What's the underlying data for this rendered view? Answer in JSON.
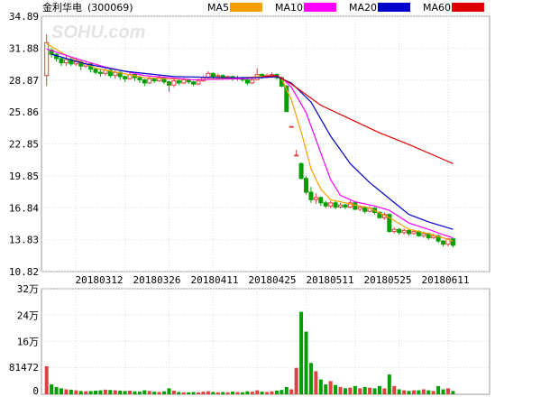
{
  "chart_data": {
    "type": "candlestick",
    "title": "金利华电",
    "code": "(300069)",
    "watermark": "SOHU.com",
    "legend": [
      {
        "name": "MA5",
        "color": "#f5a000"
      },
      {
        "name": "MA10",
        "color": "#ff00ff"
      },
      {
        "name": "MA20",
        "color": "#0000cc"
      },
      {
        "name": "MA60",
        "color": "#dd0000"
      }
    ],
    "up_color": "#e04040",
    "down_color": "#00a000",
    "price_axis": {
      "min": 10.82,
      "max": 34.89,
      "ticks": [
        "34.89",
        "31.88",
        "28.87",
        "25.86",
        "22.85",
        "19.85",
        "16.84",
        "13.83",
        "10.82"
      ]
    },
    "date_labels": [
      "20180312",
      "20180326",
      "20180411",
      "20180425",
      "20180511",
      "20180525",
      "20180611"
    ],
    "volume_axis": {
      "max": 320000,
      "ticks": [
        {
          "label": "32万",
          "value": 320000
        },
        {
          "label": "24万",
          "value": 240000
        },
        {
          "label": "16万",
          "value": 160000
        },
        {
          "label": "81472",
          "value": 81472
        },
        {
          "label": "0",
          "value": 0
        }
      ]
    },
    "candles": [
      [
        29.3,
        32.4,
        33.2,
        28.3,
        85000
      ],
      [
        31.7,
        31.3,
        31.9,
        31.0,
        30000
      ],
      [
        31.3,
        30.9,
        31.4,
        30.6,
        22000
      ],
      [
        30.9,
        30.5,
        31.0,
        30.2,
        18000
      ],
      [
        30.5,
        30.8,
        31.2,
        30.2,
        15000
      ],
      [
        30.8,
        30.4,
        31.0,
        30.2,
        14000
      ],
      [
        30.4,
        30.6,
        31.0,
        30.2,
        12000
      ],
      [
        30.6,
        30.2,
        30.7,
        29.8,
        10000
      ],
      [
        30.2,
        30.4,
        30.6,
        30.0,
        9000
      ],
      [
        30.4,
        29.9,
        30.5,
        29.6,
        10000
      ],
      [
        29.9,
        29.6,
        30.0,
        29.4,
        11000
      ],
      [
        29.6,
        29.5,
        29.9,
        29.2,
        12000
      ],
      [
        29.5,
        29.8,
        30.0,
        29.3,
        14000
      ],
      [
        29.8,
        29.3,
        29.9,
        29.1,
        13000
      ],
      [
        29.3,
        29.6,
        29.8,
        29.0,
        12000
      ],
      [
        29.6,
        29.2,
        29.7,
        28.9,
        11000
      ],
      [
        29.2,
        29.0,
        29.3,
        28.7,
        10000
      ],
      [
        29.0,
        29.4,
        29.6,
        28.9,
        11000
      ],
      [
        29.4,
        29.1,
        29.5,
        28.8,
        9000
      ],
      [
        29.1,
        28.9,
        29.3,
        28.6,
        8000
      ],
      [
        28.9,
        28.6,
        29.0,
        28.3,
        12000
      ],
      [
        28.6,
        29.0,
        29.2,
        28.5,
        10000
      ],
      [
        29.0,
        28.8,
        29.1,
        28.6,
        8000
      ],
      [
        28.8,
        29.1,
        29.3,
        28.7,
        7000
      ],
      [
        29.1,
        28.7,
        29.2,
        28.5,
        9000
      ],
      [
        28.7,
        28.4,
        28.8,
        27.8,
        18000
      ],
      [
        28.4,
        28.8,
        29.0,
        28.2,
        11000
      ],
      [
        28.8,
        28.6,
        29.0,
        28.4,
        7000
      ],
      [
        28.6,
        28.9,
        29.1,
        28.5,
        6000
      ],
      [
        28.9,
        28.7,
        29.0,
        28.5,
        6000
      ],
      [
        28.7,
        28.5,
        28.8,
        28.3,
        7000
      ],
      [
        28.5,
        28.8,
        29.0,
        28.4,
        6000
      ],
      [
        28.8,
        29.1,
        29.3,
        28.7,
        8000
      ],
      [
        29.1,
        29.5,
        29.7,
        29.0,
        9000
      ],
      [
        29.5,
        29.2,
        29.6,
        29.0,
        7000
      ],
      [
        29.2,
        29.3,
        29.5,
        29.1,
        6000
      ],
      [
        29.3,
        29.1,
        29.4,
        28.9,
        7000
      ],
      [
        29.1,
        29.2,
        29.3,
        28.9,
        6000
      ],
      [
        29.2,
        29.0,
        29.3,
        28.8,
        8000
      ],
      [
        29.0,
        29.1,
        29.3,
        28.8,
        7000
      ],
      [
        29.1,
        28.9,
        29.2,
        28.7,
        6000
      ],
      [
        28.9,
        28.6,
        29.0,
        28.4,
        9000
      ],
      [
        28.6,
        28.9,
        29.1,
        28.5,
        8000
      ],
      [
        28.9,
        29.4,
        30.0,
        28.9,
        12000
      ],
      [
        29.4,
        29.2,
        29.5,
        29.0,
        8000
      ],
      [
        29.2,
        29.3,
        29.5,
        29.1,
        7000
      ],
      [
        29.3,
        29.4,
        29.6,
        29.1,
        9000
      ],
      [
        29.4,
        29.1,
        29.5,
        28.9,
        11000
      ],
      [
        29.1,
        28.3,
        29.2,
        28.2,
        13000
      ],
      [
        28.3,
        25.9,
        28.4,
        25.9,
        22000
      ],
      [
        24.5,
        24.5,
        24.5,
        24.5,
        15000
      ],
      [
        21.8,
        21.8,
        22.3,
        21.7,
        80000
      ],
      [
        21.0,
        19.6,
        21.1,
        19.5,
        250000
      ],
      [
        19.6,
        18.3,
        19.8,
        18.1,
        190000
      ],
      [
        18.3,
        17.6,
        18.8,
        17.3,
        95000
      ],
      [
        17.6,
        17.8,
        18.2,
        17.2,
        70000
      ],
      [
        17.8,
        17.3,
        17.9,
        17.0,
        45000
      ],
      [
        17.3,
        17.0,
        17.5,
        16.8,
        30000
      ],
      [
        17.0,
        17.3,
        17.5,
        16.8,
        40000
      ],
      [
        17.3,
        16.9,
        17.5,
        16.7,
        28000
      ],
      [
        16.9,
        17.1,
        17.3,
        16.8,
        22000
      ],
      [
        17.1,
        16.9,
        17.2,
        16.7,
        18000
      ],
      [
        16.9,
        17.3,
        17.5,
        16.8,
        20000
      ],
      [
        17.3,
        16.7,
        17.4,
        16.6,
        25000
      ],
      [
        16.7,
        16.9,
        17.0,
        16.5,
        18000
      ],
      [
        16.9,
        16.5,
        17.0,
        16.3,
        22000
      ],
      [
        16.5,
        16.8,
        17.0,
        16.4,
        20000
      ],
      [
        16.8,
        16.4,
        16.9,
        16.2,
        18000
      ],
      [
        16.4,
        15.9,
        16.5,
        15.8,
        25000
      ],
      [
        15.9,
        16.2,
        16.4,
        15.7,
        18000
      ],
      [
        16.2,
        14.6,
        16.3,
        14.5,
        60000
      ],
      [
        14.6,
        14.8,
        15.0,
        14.4,
        25000
      ],
      [
        14.8,
        14.5,
        14.9,
        14.3,
        15000
      ],
      [
        14.5,
        14.7,
        14.9,
        14.3,
        12000
      ],
      [
        14.7,
        14.4,
        14.8,
        14.2,
        10000
      ],
      [
        14.4,
        14.6,
        14.8,
        14.3,
        12000
      ],
      [
        14.6,
        14.2,
        14.7,
        14.1,
        12000
      ],
      [
        14.2,
        14.4,
        14.6,
        14.0,
        15000
      ],
      [
        14.4,
        14.0,
        14.5,
        13.8,
        12000
      ],
      [
        14.0,
        14.2,
        14.4,
        13.9,
        10000
      ],
      [
        14.2,
        13.7,
        14.3,
        13.5,
        25000
      ],
      [
        13.7,
        13.4,
        13.8,
        13.2,
        15000
      ],
      [
        13.4,
        13.9,
        14.0,
        13.2,
        18000
      ],
      [
        13.9,
        13.3,
        14.0,
        13.1,
        10000
      ]
    ],
    "ma": {
      "MA5": [
        [
          0,
          32.3
        ],
        [
          4,
          31.2
        ],
        [
          10,
          30.0
        ],
        [
          20,
          29.1
        ],
        [
          30,
          28.9
        ],
        [
          40,
          29.1
        ],
        [
          47,
          29.3
        ],
        [
          48,
          29.0
        ],
        [
          50,
          27.0
        ],
        [
          52,
          24.0
        ],
        [
          54,
          20.5
        ],
        [
          56,
          18.6
        ],
        [
          58,
          17.6
        ],
        [
          62,
          17.2
        ],
        [
          66,
          16.8
        ],
        [
          70,
          15.9
        ],
        [
          74,
          14.8
        ],
        [
          78,
          14.4
        ],
        [
          81,
          14.0
        ],
        [
          83,
          13.7
        ]
      ],
      "MA10": [
        [
          0,
          31.8
        ],
        [
          6,
          30.9
        ],
        [
          12,
          30.1
        ],
        [
          20,
          29.3
        ],
        [
          30,
          28.9
        ],
        [
          40,
          29.0
        ],
        [
          47,
          29.2
        ],
        [
          48,
          29.1
        ],
        [
          50,
          28.2
        ],
        [
          53,
          25.8
        ],
        [
          56,
          22.0
        ],
        [
          58,
          19.5
        ],
        [
          60,
          18.0
        ],
        [
          63,
          17.4
        ],
        [
          67,
          17.0
        ],
        [
          70,
          16.6
        ],
        [
          74,
          15.4
        ],
        [
          78,
          14.8
        ],
        [
          81,
          14.3
        ],
        [
          83,
          14.0
        ]
      ],
      "MA20": [
        [
          1,
          31.3
        ],
        [
          8,
          30.4
        ],
        [
          16,
          29.7
        ],
        [
          26,
          29.2
        ],
        [
          36,
          29.1
        ],
        [
          44,
          29.1
        ],
        [
          47,
          29.2
        ],
        [
          50,
          28.6
        ],
        [
          54,
          26.8
        ],
        [
          58,
          23.6
        ],
        [
          62,
          21.0
        ],
        [
          66,
          19.2
        ],
        [
          70,
          17.7
        ],
        [
          74,
          16.2
        ],
        [
          78,
          15.5
        ],
        [
          83,
          14.8
        ]
      ],
      "MA60": [
        [
          44,
          29.2
        ],
        [
          47,
          29.3
        ],
        [
          50,
          28.5
        ],
        [
          56,
          26.5
        ],
        [
          62,
          25.2
        ],
        [
          68,
          23.9
        ],
        [
          74,
          22.8
        ],
        [
          80,
          21.6
        ],
        [
          83,
          21.0
        ]
      ]
    }
  }
}
